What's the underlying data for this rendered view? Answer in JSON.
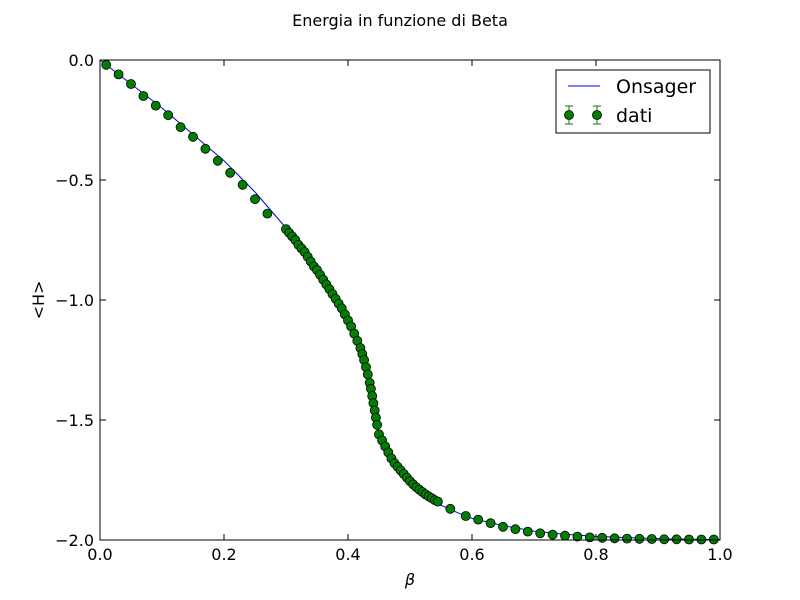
{
  "chart_data": {
    "type": "line",
    "title": "Energia in funzione di Beta",
    "xlabel": "β",
    "ylabel": "<H>",
    "xlim": [
      0.0,
      1.0
    ],
    "ylim": [
      -2.0,
      0.0
    ],
    "xticks": [
      0.0,
      0.2,
      0.4,
      0.6,
      0.8,
      1.0
    ],
    "xtick_labels": [
      "0.0",
      "0.2",
      "0.4",
      "0.6",
      "0.8",
      "1.0"
    ],
    "yticks": [
      0.0,
      -0.5,
      -1.0,
      -1.5,
      -2.0
    ],
    "ytick_labels": [
      "0.0",
      "−0.5",
      "−1.0",
      "−1.5",
      "−2.0"
    ],
    "grid": false,
    "legend_position": "top-right",
    "series": [
      {
        "name": "Onsager",
        "kind": "line",
        "color": "#0000ff",
        "x": [
          0.0,
          0.05,
          0.1,
          0.15,
          0.2,
          0.25,
          0.3,
          0.32,
          0.34,
          0.36,
          0.38,
          0.4,
          0.41,
          0.42,
          0.43,
          0.435,
          0.44,
          0.445,
          0.45,
          0.46,
          0.47,
          0.48,
          0.5,
          0.52,
          0.55,
          0.58,
          0.6,
          0.65,
          0.7,
          0.75,
          0.8,
          0.85,
          0.9,
          0.95,
          1.0
        ],
        "y": [
          0.0,
          -0.1,
          -0.2,
          -0.31,
          -0.42,
          -0.55,
          -0.7,
          -0.76,
          -0.83,
          -0.91,
          -0.99,
          -1.09,
          -1.15,
          -1.22,
          -1.3,
          -1.36,
          -1.43,
          -1.5,
          -1.55,
          -1.62,
          -1.67,
          -1.71,
          -1.77,
          -1.81,
          -1.855,
          -1.89,
          -1.91,
          -1.94,
          -1.963,
          -1.976,
          -1.985,
          -1.99,
          -1.994,
          -1.997,
          -1.998
        ]
      },
      {
        "name": "dati",
        "kind": "errorbar",
        "color": "#008000",
        "x": [
          0.01,
          0.03,
          0.05,
          0.07,
          0.09,
          0.11,
          0.13,
          0.15,
          0.17,
          0.19,
          0.21,
          0.23,
          0.25,
          0.27,
          0.3,
          0.305,
          0.31,
          0.315,
          0.32,
          0.325,
          0.33,
          0.335,
          0.34,
          0.345,
          0.35,
          0.355,
          0.36,
          0.365,
          0.37,
          0.375,
          0.38,
          0.385,
          0.39,
          0.395,
          0.4,
          0.405,
          0.41,
          0.415,
          0.42,
          0.423,
          0.426,
          0.429,
          0.432,
          0.435,
          0.437,
          0.439,
          0.441,
          0.443,
          0.445,
          0.447,
          0.45,
          0.455,
          0.46,
          0.465,
          0.47,
          0.475,
          0.48,
          0.485,
          0.49,
          0.495,
          0.5,
          0.505,
          0.51,
          0.515,
          0.52,
          0.525,
          0.53,
          0.535,
          0.54,
          0.545,
          0.565,
          0.59,
          0.61,
          0.63,
          0.65,
          0.67,
          0.69,
          0.71,
          0.73,
          0.75,
          0.77,
          0.79,
          0.81,
          0.83,
          0.85,
          0.87,
          0.89,
          0.91,
          0.93,
          0.95,
          0.97,
          0.99
        ],
        "y": [
          -0.02,
          -0.06,
          -0.1,
          -0.15,
          -0.19,
          -0.23,
          -0.28,
          -0.32,
          -0.37,
          -0.42,
          -0.47,
          -0.52,
          -0.58,
          -0.64,
          -0.705,
          -0.72,
          -0.735,
          -0.75,
          -0.77,
          -0.785,
          -0.8,
          -0.82,
          -0.84,
          -0.86,
          -0.875,
          -0.895,
          -0.915,
          -0.935,
          -0.955,
          -0.975,
          -0.995,
          -1.015,
          -1.035,
          -1.06,
          -1.085,
          -1.11,
          -1.14,
          -1.17,
          -1.2,
          -1.225,
          -1.25,
          -1.28,
          -1.31,
          -1.345,
          -1.37,
          -1.4,
          -1.43,
          -1.46,
          -1.49,
          -1.52,
          -1.56,
          -1.585,
          -1.61,
          -1.635,
          -1.66,
          -1.68,
          -1.695,
          -1.71,
          -1.725,
          -1.74,
          -1.755,
          -1.768,
          -1.78,
          -1.79,
          -1.8,
          -1.81,
          -1.818,
          -1.826,
          -1.834,
          -1.84,
          -1.87,
          -1.9,
          -1.915,
          -1.93,
          -1.945,
          -1.955,
          -1.965,
          -1.972,
          -1.978,
          -1.982,
          -1.986,
          -1.989,
          -1.991,
          -1.993,
          -1.994,
          -1.995,
          -1.996,
          -1.997,
          -1.997,
          -1.998,
          -1.998,
          -1.998
        ]
      }
    ]
  }
}
